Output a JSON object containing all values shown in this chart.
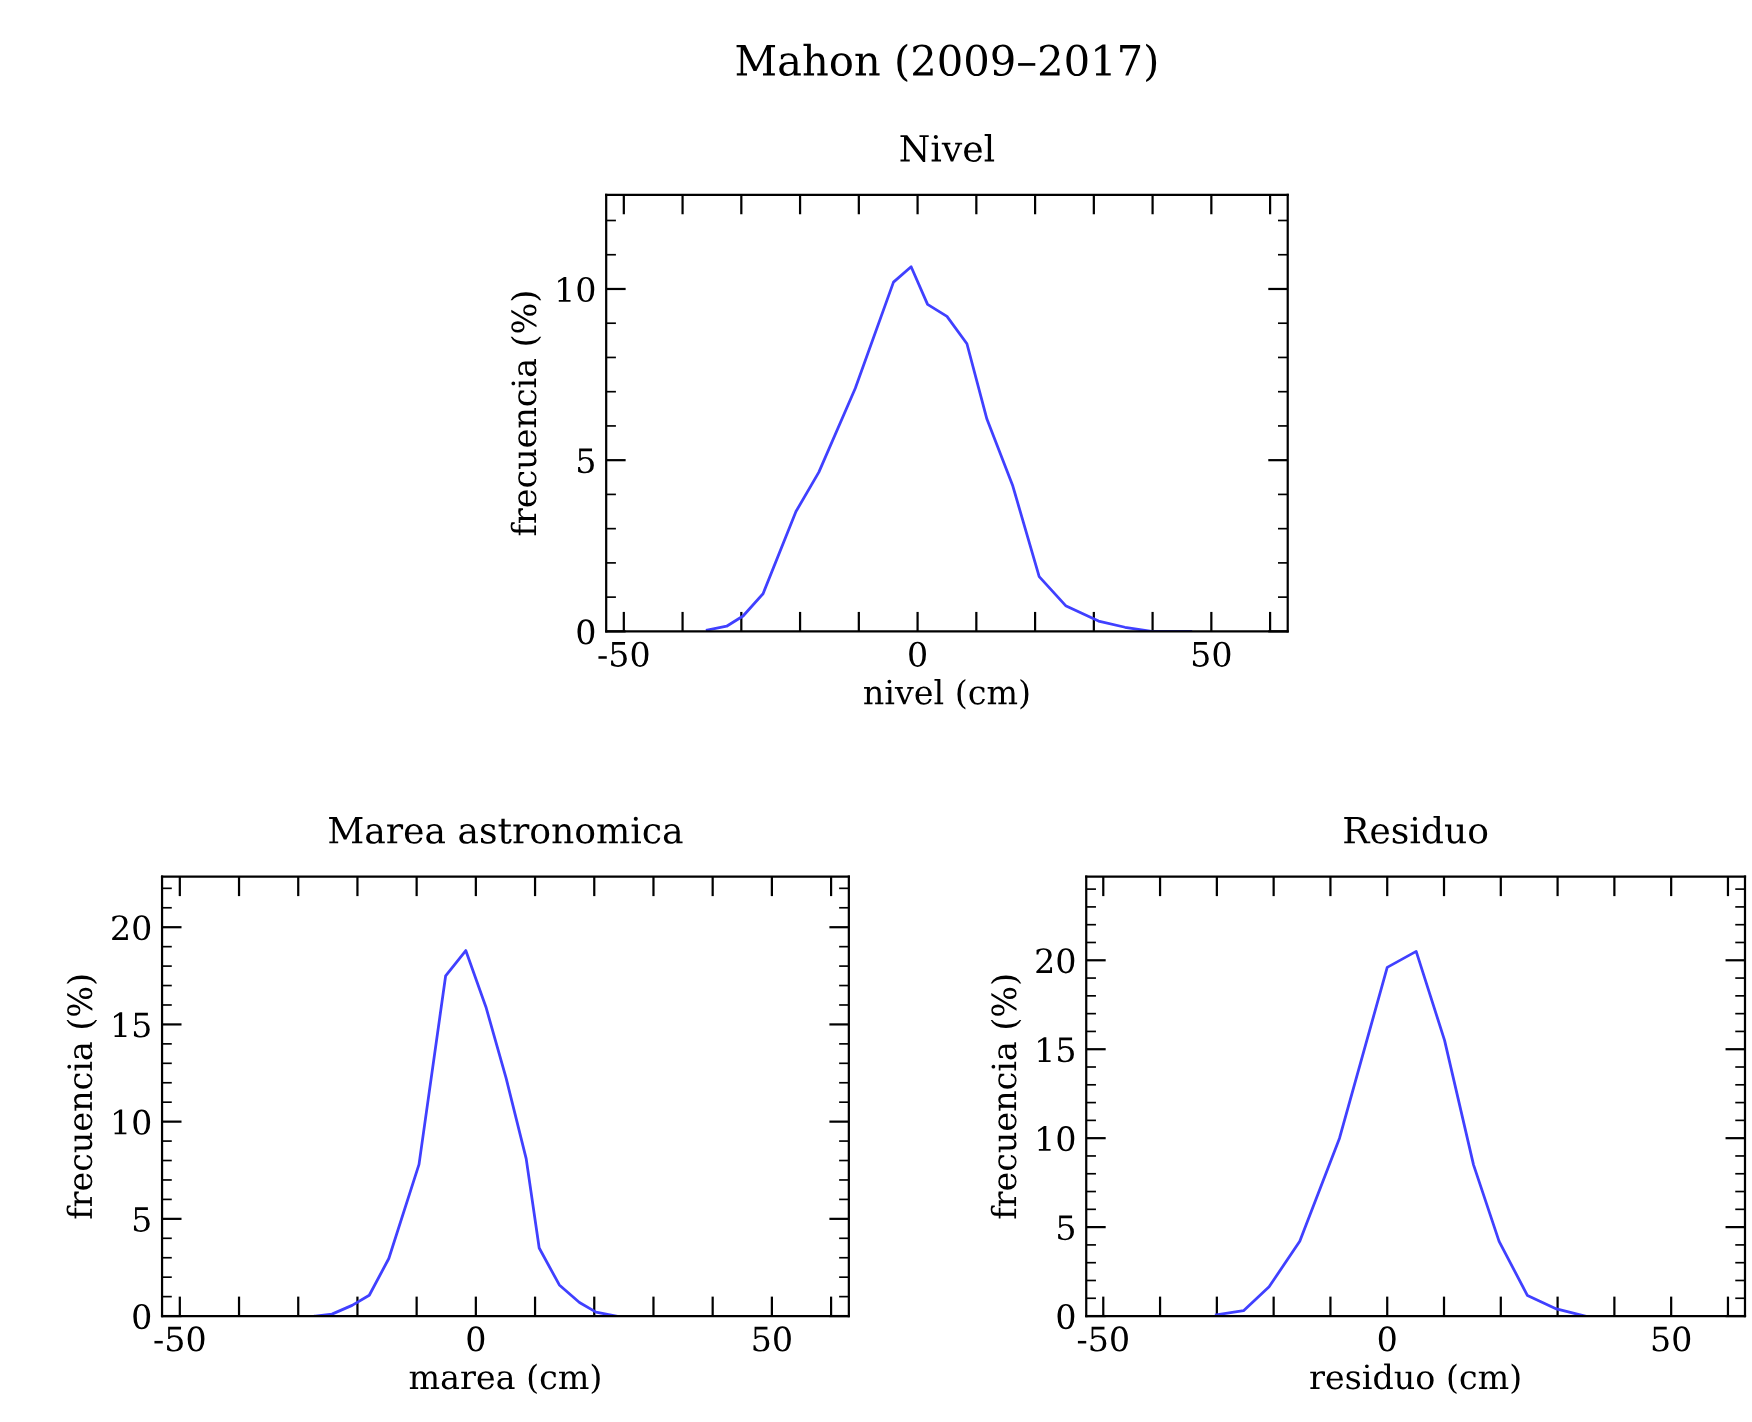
{
  "chart_data": [
    {
      "type": "line",
      "title": "Mahon (2009–2017)",
      "subtitle": "Nivel",
      "xlabel": "nivel (cm)",
      "ylabel": "frecuencia (%)",
      "x": [
        -35.8,
        -32.5,
        -29.7,
        -26.3,
        -20.7,
        -16.8,
        -10.6,
        -4.1,
        -1.1,
        1.7,
        5.0,
        8.4,
        11.8,
        16.2,
        20.7,
        25.2,
        30.8,
        35.3,
        39.8,
        46.5
      ],
      "series": [
        {
          "color": "#4040ff",
          "values": [
            0.04,
            0.15,
            0.45,
            1.1,
            3.5,
            4.65,
            7.1,
            10.2,
            10.65,
            9.55,
            9.2,
            8.4,
            6.2,
            4.25,
            1.6,
            0.75,
            0.3,
            0.12,
            0,
            0
          ]
        }
      ],
      "xlim": [
        -53,
        63
      ],
      "ylim": [
        0,
        12.75
      ],
      "xticks": [
        -50,
        {
          "value": -40,
          "label": null
        },
        {
          "value": -30,
          "label": null
        },
        {
          "value": -20,
          "label": null
        },
        {
          "value": -10,
          "label": null
        },
        0,
        {
          "value": 10,
          "label": null
        },
        {
          "value": 20,
          "label": null
        },
        {
          "value": 30,
          "label": null
        },
        {
          "value": 40,
          "label": null
        },
        50,
        {
          "value": 60,
          "label": null
        }
      ],
      "yticks": [
        0,
        5,
        10
      ],
      "grid": false,
      "legend": false,
      "marker": "none",
      "line_style": "solid"
    },
    {
      "type": "line",
      "title": "Marea astronomica",
      "xlabel": "marea (cm)",
      "ylabel": "frecuencia (%)",
      "x": [
        -27.1,
        -24.3,
        -20.9,
        -18.0,
        -14.7,
        -9.6,
        -5.1,
        -1.7,
        1.7,
        5.1,
        8.5,
        10.7,
        14.1,
        17.5,
        20.3,
        23.7
      ],
      "series": [
        {
          "color": "#4040ff",
          "values": [
            0,
            0.1,
            0.55,
            1.07,
            2.96,
            7.8,
            17.5,
            18.8,
            15.9,
            12.25,
            8.1,
            3.5,
            1.6,
            0.7,
            0.2,
            0
          ]
        }
      ],
      "xlim": [
        -53,
        63
      ],
      "ylim": [
        0,
        22.6
      ],
      "xticks": [
        -50,
        {
          "value": -40,
          "label": null
        },
        {
          "value": -30,
          "label": null
        },
        {
          "value": -20,
          "label": null
        },
        {
          "value": -10,
          "label": null
        },
        0,
        {
          "value": 10,
          "label": null
        },
        {
          "value": 20,
          "label": null
        },
        {
          "value": 30,
          "label": null
        },
        {
          "value": 40,
          "label": null
        },
        50,
        {
          "value": 60,
          "label": null
        }
      ],
      "yticks": [
        0,
        5,
        10,
        15,
        20
      ],
      "grid": false,
      "legend": false,
      "marker": "none",
      "line_style": "solid"
    },
    {
      "type": "line",
      "title": "Residuo",
      "xlabel": "residuo (cm)",
      "ylabel": "frecuencia (%)",
      "x": [
        -30.1,
        -25.3,
        -20.8,
        -15.4,
        -8.4,
        0,
        5.1,
        10.1,
        15.2,
        19.7,
        24.7,
        29.8,
        34.8
      ],
      "series": [
        {
          "color": "#4040ff",
          "values": [
            0.07,
            0.3,
            1.65,
            4.2,
            10.0,
            19.6,
            20.5,
            15.5,
            8.5,
            4.2,
            1.15,
            0.4,
            0
          ]
        }
      ],
      "xlim": [
        -53,
        63
      ],
      "ylim": [
        0,
        24.7
      ],
      "xticks": [
        -50,
        {
          "value": -40,
          "label": null
        },
        {
          "value": -30,
          "label": null
        },
        {
          "value": -20,
          "label": null
        },
        {
          "value": -10,
          "label": null
        },
        0,
        {
          "value": 10,
          "label": null
        },
        {
          "value": 20,
          "label": null
        },
        {
          "value": 30,
          "label": null
        },
        {
          "value": 40,
          "label": null
        },
        50,
        {
          "value": 60,
          "label": null
        }
      ],
      "yticks": [
        0,
        5,
        10,
        15,
        20
      ],
      "grid": false,
      "legend": false,
      "marker": "none",
      "line_style": "solid"
    }
  ]
}
